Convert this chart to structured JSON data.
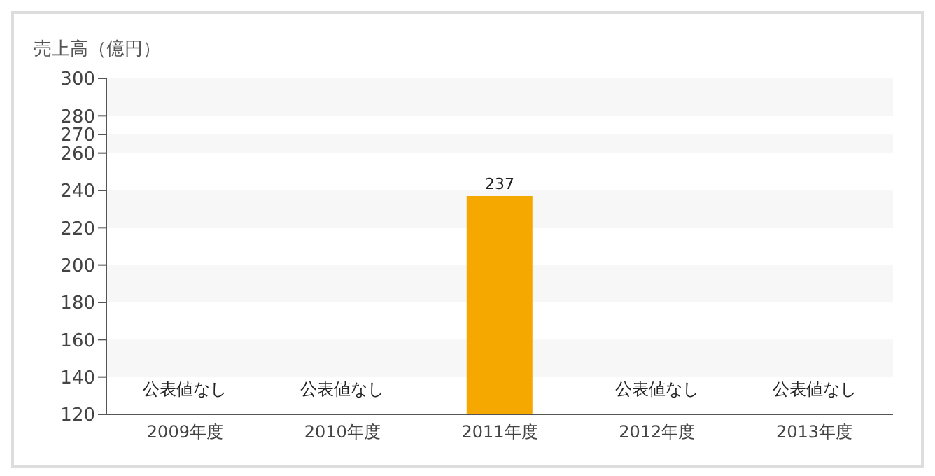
{
  "chart_data": {
    "type": "bar",
    "ylabel": "売上高（億円）",
    "categories": [
      "2009年度",
      "2010年度",
      "2011年度",
      "2012年度",
      "2013年度"
    ],
    "values": [
      null,
      null,
      237,
      null,
      null
    ],
    "value_labels": [
      "公表値なし",
      "公表値なし",
      "237",
      "公表値なし",
      "公表値なし"
    ],
    "color": "#f5a800",
    "ylim": [
      120,
      300
    ],
    "yticks": [
      120,
      140,
      160,
      180,
      200,
      220,
      240,
      260,
      270,
      280,
      300
    ],
    "bands": [
      {
        "axis": "y",
        "from": 280,
        "to": 300,
        "color": "#f7f7f7"
      },
      {
        "axis": "y",
        "from": 260,
        "to": 270,
        "color": "#f7f7f7"
      },
      {
        "axis": "y",
        "from": 220,
        "to": 240,
        "color": "#f7f7f7"
      },
      {
        "axis": "y",
        "from": 180,
        "to": 200,
        "color": "#f7f7f7"
      },
      {
        "axis": "y",
        "from": 140,
        "to": 160,
        "color": "#f7f7f7"
      }
    ]
  }
}
